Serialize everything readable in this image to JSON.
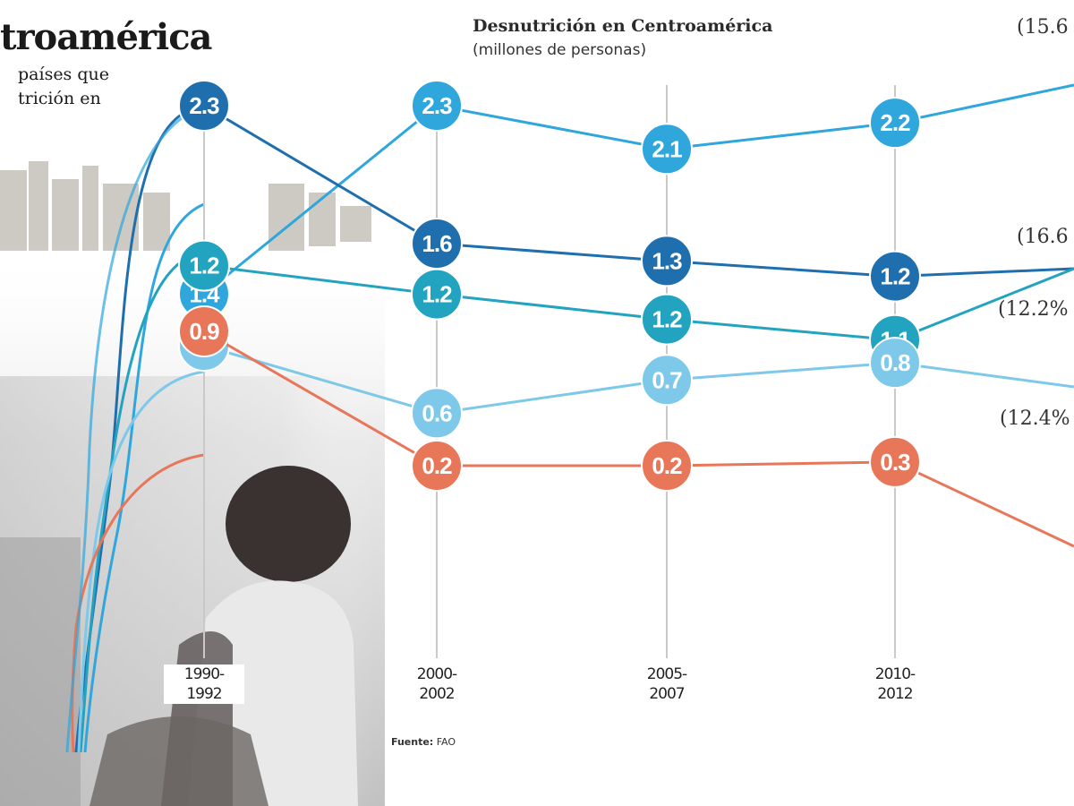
{
  "headline": "troamérica",
  "intro_lines": [
    "países que",
    "trición en"
  ],
  "source": {
    "label": "Fuente:",
    "value": "FAO"
  },
  "percent_labels": [
    "(15.6",
    "(16.6",
    "(12.2%",
    "(12.4%"
  ],
  "colors": {
    "series_dark_blue": "#1f6fae",
    "series_blue": "#2fa6dc",
    "series_teal": "#22a3bf",
    "series_light_blue": "#7ec8ea",
    "series_orange": "#e8775a",
    "gridline": "#c9c9c9",
    "label_text": "#ffffff"
  },
  "chart_data": {
    "type": "line",
    "title": "Desnutrición en Centroamérica",
    "subtitle": "(millones de personas)",
    "categories": [
      "1990-1992",
      "2000-2002",
      "2005-2007",
      "2010-2012"
    ],
    "tick_labels": [
      [
        "1990-",
        "1992"
      ],
      [
        "2000-",
        "2002"
      ],
      [
        "2005-",
        "2007"
      ],
      [
        "2010-",
        "2012"
      ]
    ],
    "ylim": [
      0,
      2.5
    ],
    "grid": "vertical",
    "series": [
      {
        "color": "#2fa6dc",
        "values": [
          1.4,
          2.3,
          2.1,
          2.2
        ],
        "labels": [
          "1.4",
          "2.3",
          "2.1",
          "2.2"
        ]
      },
      {
        "color": "#1f6fae",
        "values": [
          2.3,
          1.6,
          1.3,
          1.2
        ],
        "labels": [
          "2.3",
          "1.6",
          "1.3",
          "1.2"
        ]
      },
      {
        "color": "#22a3bf",
        "values": [
          1.2,
          1.2,
          1.2,
          1.1
        ],
        "labels": [
          "1.2",
          "1.2",
          "1.2",
          "1.1"
        ]
      },
      {
        "color": "#7ec8ea",
        "values": [
          0.9,
          0.6,
          0.7,
          0.8
        ],
        "labels": [
          "0.9",
          "0.6",
          "0.7",
          "0.8"
        ]
      },
      {
        "color": "#e8775a",
        "values": [
          0.9,
          0.2,
          0.2,
          0.3
        ],
        "labels": [
          "0.9",
          "0.2",
          "0.2",
          "0.3"
        ]
      }
    ]
  }
}
